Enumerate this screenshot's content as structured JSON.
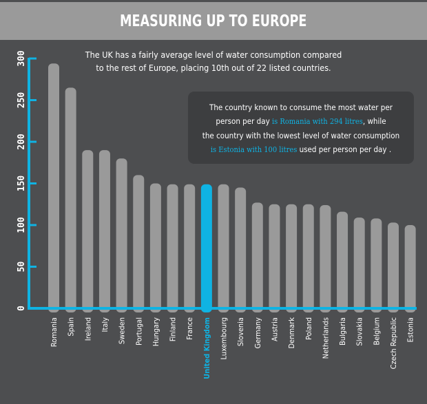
{
  "header": {
    "title": "MEASURING UP TO EUROPE"
  },
  "subtitle": [
    "The UK has a fairly average level of water consumption compared",
    "to the rest of Europe, placing 10th out of 22 listed countries."
  ],
  "callout": {
    "line1": "The country known to consume the most water per",
    "line2_a": "person per day ",
    "line2_hl": "is Romania with 294 litres",
    "line2_b": ", while",
    "line3": "the country with the lowest level of water consumption",
    "line4_hl": "is Estonia with 100 litres",
    "line4_b": " used per person per day ."
  },
  "colors": {
    "background": "#4d4e50",
    "title_bar": "#9a9a9a",
    "bar": "#9a9a9a",
    "highlight": "#0fb3e3",
    "axis": "#0fb3e3",
    "callout_bg": "#3d3e40"
  },
  "chart_data": {
    "type": "bar",
    "title": "MEASURING UP TO EUROPE",
    "xlabel": "",
    "ylabel": "",
    "ylim": [
      0,
      300
    ],
    "yticks": [
      0,
      50,
      100,
      150,
      200,
      250,
      300
    ],
    "grid": false,
    "highlight_category": "United Kingdom",
    "categories": [
      "Romania",
      "Spain",
      "Ireland",
      "Italy",
      "Sweden",
      "Portugal",
      "Hungary",
      "Finland",
      "France",
      "United Kingdom",
      "Luxembourg",
      "Slovenia",
      "Germany",
      "Austria",
      "Denmark",
      "Poland",
      "Netherlands",
      "Bulgaria",
      "Slovakia",
      "Belgium",
      "Czech Republic",
      "Estonia"
    ],
    "values": [
      294,
      265,
      190,
      190,
      180,
      160,
      150,
      149,
      149,
      149,
      149,
      145,
      127,
      125,
      125,
      125,
      124,
      116,
      109,
      108,
      103,
      100
    ]
  }
}
